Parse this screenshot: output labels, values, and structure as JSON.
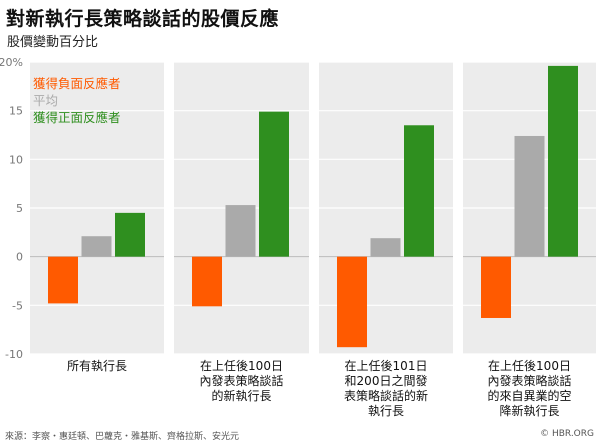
{
  "title": "對新執行長策略談話的股價反應",
  "subtitle": "股價變動百分比",
  "footer": {
    "source": "來源：李察・惠廷頓、巴蘿克・雅基斯、齊格拉斯、安光元",
    "credit": "© HBR.ORG"
  },
  "colors": {
    "negative": "#ff5a00",
    "average": "#aaaaaa",
    "positive": "#2f8f1f",
    "panel": "#ececec"
  },
  "chart_data": {
    "type": "bar",
    "categories": [
      [
        "所有執行長"
      ],
      [
        "在上任後100日",
        "內發表策略談話",
        "的新執行長"
      ],
      [
        "在上任後101日",
        "和200日之間發",
        "表策略談話的新",
        "執行長"
      ],
      [
        "在上任後100日",
        "內發表策略談話",
        "的來自異業的空",
        "降新執行長"
      ]
    ],
    "series": [
      {
        "name": "獲得負面反應者",
        "color": "#ff5a00",
        "values": [
          -4.8,
          -5.1,
          -9.3,
          -6.3
        ]
      },
      {
        "name": "平均",
        "color": "#aaaaaa",
        "values": [
          2.1,
          5.3,
          1.9,
          12.4
        ]
      },
      {
        "name": "獲得正面反應者",
        "color": "#2f8f1f",
        "values": [
          4.5,
          14.9,
          13.5,
          19.6
        ]
      }
    ],
    "ylim": [
      -10,
      20
    ],
    "yticks": [
      "20%",
      "15",
      "10",
      "5",
      "0",
      "-5",
      "-10"
    ],
    "ytick_values": [
      20,
      15,
      10,
      5,
      0,
      -5,
      -10
    ],
    "legend_position": "top-left"
  }
}
